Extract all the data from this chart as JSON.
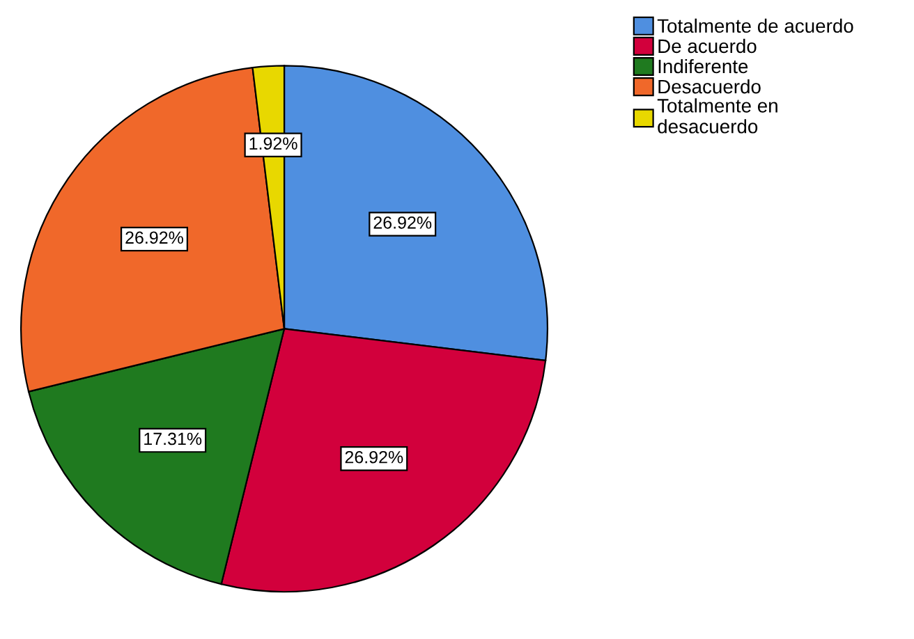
{
  "chart_data": {
    "type": "pie",
    "categories": [
      "Totalmente de acuerdo",
      "De acuerdo",
      "Indiferente",
      "Desacuerdo",
      "Totalmente en\ndesacuerdo"
    ],
    "values": [
      26.92,
      26.92,
      17.31,
      26.92,
      1.92
    ],
    "colors": [
      "#4f8fe0",
      "#d2003c",
      "#1f7a1f",
      "#f0682a",
      "#e8d800"
    ],
    "value_labels": [
      "26.92%",
      "26.92%",
      "17.31%",
      "26.92%",
      "1.92%"
    ],
    "legend": "top right"
  }
}
